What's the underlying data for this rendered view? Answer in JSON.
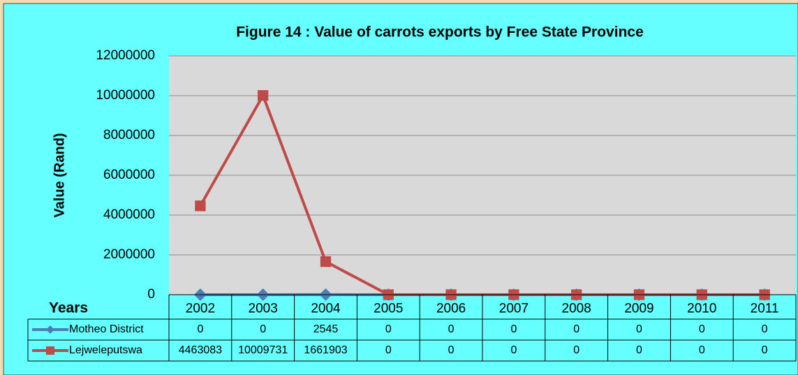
{
  "chart_data": {
    "type": "line",
    "title": "Figure 14 : Value of carrots exports by Free State Province",
    "y_label": "Value (Rand)",
    "table_header": "Years",
    "categories": [
      "2002",
      "2003",
      "2004",
      "2005",
      "2006",
      "2007",
      "2008",
      "2009",
      "2010",
      "2011"
    ],
    "series": [
      {
        "name": "Motheo District",
        "color": "#4a7ebb",
        "marker": "diamond",
        "values": [
          0,
          0,
          2545,
          0,
          0,
          0,
          0,
          0,
          0,
          0
        ]
      },
      {
        "name": "Lejweleputswa",
        "color": "#be4b48",
        "marker": "square",
        "values": [
          4463083,
          10009731,
          1661903,
          0,
          0,
          0,
          0,
          0,
          0,
          0
        ]
      }
    ],
    "ylim": [
      0,
      12000000
    ],
    "yticks": [
      0,
      2000000,
      4000000,
      6000000,
      8000000,
      10000000,
      12000000
    ],
    "grid": true,
    "data_table": true
  }
}
